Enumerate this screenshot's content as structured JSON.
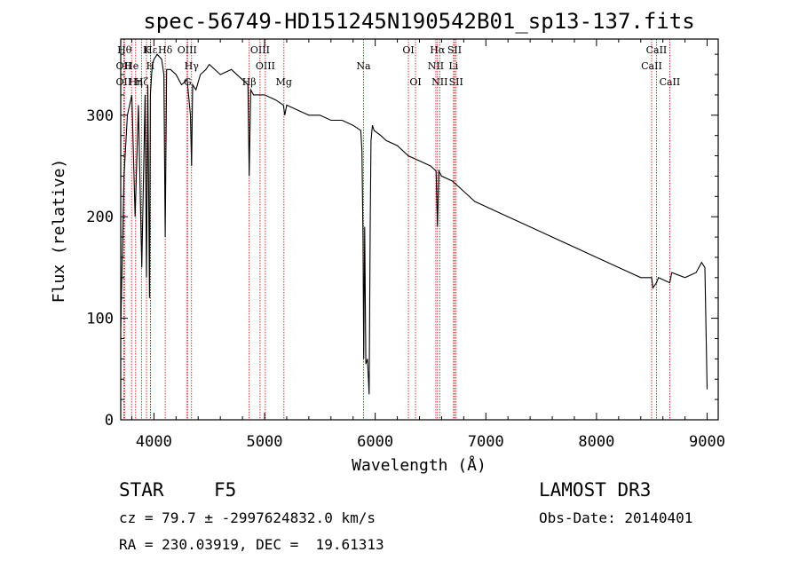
{
  "chart_data": {
    "type": "line",
    "title": "spec-56749-HD151245N190542B01_sp13-137.fits",
    "xlabel": "Wavelength (Å)",
    "ylabel": "Flux (relative)",
    "xlim": [
      3700,
      9100
    ],
    "ylim": [
      0,
      375
    ],
    "x_ticks": [
      4000,
      5000,
      6000,
      7000,
      8000,
      9000
    ],
    "x_tick_labels": [
      "4000",
      "5000",
      "6000",
      "7000",
      "8000",
      "9000"
    ],
    "y_ticks": [
      0,
      100,
      200,
      300
    ],
    "y_tick_labels": [
      "0",
      "100",
      "200",
      "300"
    ],
    "series": [
      {
        "name": "spectrum",
        "x": [
          3700,
          3730,
          3760,
          3800,
          3830,
          3860,
          3890,
          3920,
          3933,
          3945,
          3960,
          3968,
          3985,
          4000,
          4030,
          4070,
          4090,
          4102,
          4115,
          4150,
          4200,
          4250,
          4300,
          4330,
          4340,
          4350,
          4380,
          4420,
          4470,
          4500,
          4600,
          4700,
          4800,
          4850,
          4861,
          4875,
          4900,
          5000,
          5100,
          5170,
          5183,
          5200,
          5300,
          5400,
          5500,
          5600,
          5700,
          5800,
          5870,
          5880,
          5890,
          5896,
          5905,
          5915,
          5930,
          5945,
          5955,
          5962,
          5975,
          5990,
          6050,
          6100,
          6200,
          6300,
          6400,
          6500,
          6550,
          6563,
          6575,
          6600,
          6700,
          6800,
          6900,
          7000,
          7200,
          7400,
          7600,
          7800,
          8000,
          8200,
          8400,
          8498,
          8510,
          8542,
          8560,
          8662,
          8680,
          8800,
          8900,
          8950,
          8980,
          9000
        ],
        "y": [
          90,
          240,
          300,
          320,
          200,
          310,
          150,
          320,
          140,
          330,
          120,
          320,
          350,
          355,
          360,
          355,
          340,
          180,
          345,
          345,
          340,
          330,
          335,
          300,
          250,
          330,
          325,
          340,
          345,
          350,
          340,
          345,
          335,
          330,
          240,
          325,
          320,
          320,
          315,
          310,
          300,
          310,
          305,
          300,
          300,
          295,
          295,
          290,
          285,
          265,
          180,
          60,
          190,
          55,
          60,
          25,
          190,
          275,
          290,
          285,
          280,
          275,
          270,
          260,
          255,
          250,
          245,
          190,
          245,
          240,
          235,
          225,
          215,
          210,
          200,
          190,
          180,
          170,
          160,
          150,
          140,
          140,
          130,
          135,
          140,
          135,
          145,
          140,
          145,
          155,
          150,
          30
        ]
      }
    ],
    "line_markers": [
      {
        "x": 3734,
        "label": "Hθ",
        "row": 0
      },
      {
        "x": 3727,
        "label": "OII",
        "row": 1
      },
      {
        "x": 3727,
        "label": "OII",
        "row": 2
      },
      {
        "x": 3798,
        "label": "He",
        "row": 1
      },
      {
        "x": 3835,
        "label": "Hη",
        "row": 2
      },
      {
        "x": 3889,
        "label": "Hζ",
        "row": 2
      },
      {
        "x": 3933,
        "label": "K",
        "row": 0
      },
      {
        "x": 3968,
        "label": "H",
        "row": 1
      },
      {
        "x": 3970,
        "label": "Hε",
        "row": 0
      },
      {
        "x": 4102,
        "label": "Hδ",
        "row": 0
      },
      {
        "x": 4300,
        "label": "OIII",
        "row": 0
      },
      {
        "x": 4340,
        "label": "Hγ",
        "row": 1
      },
      {
        "x": 4304,
        "label": "G",
        "row": 2
      },
      {
        "x": 4861,
        "label": "Hβ",
        "row": 2
      },
      {
        "x": 4959,
        "label": "OIII",
        "row": 0
      },
      {
        "x": 5007,
        "label": "OIII",
        "row": 1
      },
      {
        "x": 5175,
        "label": "Mg",
        "row": 2
      },
      {
        "x": 5894,
        "label": "Na",
        "row": 1
      },
      {
        "x": 6300,
        "label": "OI",
        "row": 0
      },
      {
        "x": 6364,
        "label": "OI",
        "row": 2
      },
      {
        "x": 6563,
        "label": "Hα",
        "row": 0
      },
      {
        "x": 6548,
        "label": "NII",
        "row": 1
      },
      {
        "x": 6583,
        "label": "NII",
        "row": 2
      },
      {
        "x": 6717,
        "label": "SII",
        "row": 0
      },
      {
        "x": 6731,
        "label": "SII",
        "row": 2
      },
      {
        "x": 6708,
        "label": "Li",
        "row": 1
      },
      {
        "x": 8542,
        "label": "CaII",
        "row": 0
      },
      {
        "x": 8498,
        "label": "CaII",
        "row": 1
      },
      {
        "x": 8662,
        "label": "CaII",
        "row": 2
      }
    ]
  },
  "info": {
    "object_type": "STAR",
    "subclass": "F5",
    "survey": "LAMOST DR3",
    "cz_line": "cz = 79.7 ± -2997624832.0 km/s",
    "obs_date": "Obs-Date: 20140401",
    "coords": "RA = 230.03919, DEC =  19.61313"
  },
  "colors": {
    "marker": "#cc0000",
    "axis": "#000000",
    "spectrum": "#000000"
  }
}
